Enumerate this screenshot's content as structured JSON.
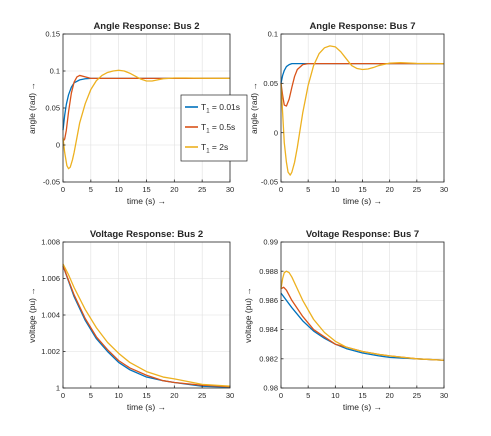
{
  "chart_data": [
    {
      "type": "line",
      "title": "Angle Response: Bus 2",
      "xlabel": "time (s) →",
      "ylabel": "angle (rad)   →",
      "xlim": [
        0,
        30
      ],
      "ylim": [
        -0.05,
        0.15
      ],
      "xticks": [
        0,
        5,
        10,
        15,
        20,
        25,
        30
      ],
      "yticks": [
        -0.05,
        0,
        0.05,
        0.1,
        0.15
      ],
      "ytick_labels": [
        "-0.05",
        "0",
        "0.05",
        "0.1",
        "0.15"
      ],
      "grid": true,
      "legend": {
        "placement": "center-right",
        "entries": [
          {
            "prefix": "T",
            "sub": "1",
            "suffix": " = 0.01s"
          },
          {
            "prefix": "T",
            "sub": "1",
            "suffix": " = 0.5s"
          },
          {
            "prefix": "T",
            "sub": "1",
            "suffix": " = 2s"
          }
        ]
      },
      "series": [
        {
          "color": "#0072BD",
          "x": [
            0,
            0.3,
            0.6,
            1,
            1.5,
            2,
            3,
            4,
            5,
            6,
            8,
            10,
            15,
            20,
            25,
            30
          ],
          "y": [
            0.02,
            0.04,
            0.055,
            0.068,
            0.078,
            0.084,
            0.088,
            0.0895,
            0.09,
            0.09,
            0.09,
            0.09,
            0.09,
            0.09,
            0.09,
            0.09
          ]
        },
        {
          "color": "#D95319",
          "x": [
            0,
            0.3,
            0.6,
            1,
            1.5,
            2,
            2.5,
            3,
            4,
            5,
            6,
            8,
            10,
            15,
            20,
            25,
            30
          ],
          "y": [
            0.005,
            0.008,
            0.02,
            0.045,
            0.07,
            0.085,
            0.092,
            0.094,
            0.092,
            0.09,
            0.09,
            0.09,
            0.09,
            0.09,
            0.09,
            0.09,
            0.09
          ]
        },
        {
          "color": "#EDB120",
          "x": [
            0,
            0.3,
            0.7,
            1,
            1.3,
            1.7,
            2,
            2.5,
            3,
            4,
            5,
            6,
            7,
            8,
            9,
            10,
            11,
            12,
            13,
            14,
            15,
            16,
            17,
            18,
            20,
            22,
            25,
            30
          ],
          "y": [
            0.01,
            -0.01,
            -0.028,
            -0.032,
            -0.03,
            -0.02,
            -0.01,
            0.01,
            0.03,
            0.056,
            0.075,
            0.087,
            0.094,
            0.098,
            0.1,
            0.101,
            0.1,
            0.097,
            0.093,
            0.089,
            0.0865,
            0.0865,
            0.088,
            0.0895,
            0.0905,
            0.0905,
            0.0902,
            0.09
          ]
        }
      ]
    },
    {
      "type": "line",
      "title": "Angle Response: Bus 7",
      "xlabel": "time (s) →",
      "ylabel": "angle (rad)   →",
      "xlim": [
        0,
        30
      ],
      "ylim": [
        -0.05,
        0.1
      ],
      "xticks": [
        0,
        5,
        10,
        15,
        20,
        25,
        30
      ],
      "yticks": [
        -0.05,
        0,
        0.05,
        0.1
      ],
      "ytick_labels": [
        "-0.05",
        "0",
        "0.05",
        "0.1"
      ],
      "grid": true,
      "series": [
        {
          "color": "#0072BD",
          "x": [
            0,
            0.3,
            0.6,
            1,
            1.5,
            2,
            3,
            4,
            5,
            6,
            8,
            10,
            15,
            20,
            25,
            30
          ],
          "y": [
            0.05,
            0.058,
            0.063,
            0.067,
            0.069,
            0.07,
            0.07,
            0.07,
            0.07,
            0.07,
            0.07,
            0.07,
            0.07,
            0.07,
            0.07,
            0.07
          ]
        },
        {
          "color": "#D95319",
          "x": [
            0,
            0.3,
            0.6,
            1,
            1.5,
            2,
            2.5,
            3,
            4,
            5,
            6,
            8,
            10,
            15,
            20,
            25,
            30
          ],
          "y": [
            0.05,
            0.038,
            0.028,
            0.027,
            0.034,
            0.046,
            0.057,
            0.064,
            0.069,
            0.07,
            0.07,
            0.07,
            0.07,
            0.07,
            0.07,
            0.07,
            0.07
          ]
        },
        {
          "color": "#EDB120",
          "x": [
            0,
            0.3,
            0.6,
            1,
            1.3,
            1.7,
            2,
            2.5,
            3,
            4,
            5,
            6,
            7,
            8,
            9,
            10,
            11,
            12,
            13,
            14,
            15,
            16,
            17,
            18,
            20,
            22,
            25,
            30
          ],
          "y": [
            0.05,
            0.02,
            -0.01,
            -0.03,
            -0.04,
            -0.043,
            -0.04,
            -0.03,
            -0.015,
            0.02,
            0.048,
            0.068,
            0.08,
            0.086,
            0.088,
            0.087,
            0.082,
            0.075,
            0.068,
            0.065,
            0.064,
            0.0645,
            0.066,
            0.068,
            0.0705,
            0.071,
            0.0702,
            0.07
          ]
        }
      ]
    },
    {
      "type": "line",
      "title": "Voltage Response: Bus 2",
      "xlabel": "time (s) →",
      "ylabel": "voltage (pu)   →",
      "xlim": [
        0,
        30
      ],
      "ylim": [
        1,
        1.008
      ],
      "xticks": [
        0,
        5,
        10,
        15,
        20,
        25,
        30
      ],
      "yticks": [
        1,
        1.002,
        1.004,
        1.006,
        1.008
      ],
      "ytick_labels": [
        "1",
        "1.002",
        "1.004",
        "1.006",
        "1.008"
      ],
      "grid": true,
      "series": [
        {
          "color": "#0072BD",
          "x": [
            0,
            2,
            4,
            6,
            8,
            10,
            12,
            15,
            18,
            20,
            25,
            30
          ],
          "y": [
            1.0067,
            1.005,
            1.0037,
            1.0027,
            1.002,
            1.0014,
            1.001,
            1.0006,
            1.0004,
            1.0003,
            1.0001,
            1.00005
          ]
        },
        {
          "color": "#D95319",
          "x": [
            0,
            2,
            4,
            6,
            8,
            10,
            12,
            15,
            18,
            20,
            25,
            30
          ],
          "y": [
            1.0067,
            1.0051,
            1.0038,
            1.0028,
            1.0021,
            1.0015,
            1.0011,
            1.0007,
            1.0004,
            1.0003,
            1.00015,
            1.00007
          ]
        },
        {
          "color": "#EDB120",
          "x": [
            0,
            1,
            2,
            4,
            6,
            8,
            10,
            12,
            15,
            18,
            20,
            25,
            30
          ],
          "y": [
            1.0068,
            1.0062,
            1.0055,
            1.0043,
            1.0033,
            1.0025,
            1.0019,
            1.0014,
            1.0009,
            1.0006,
            1.0005,
            1.0002,
            1.0001
          ]
        }
      ]
    },
    {
      "type": "line",
      "title": "Voltage Response: Bus 7",
      "xlabel": "time (s) →",
      "ylabel": "voltage (pu)   →",
      "xlim": [
        0,
        30
      ],
      "ylim": [
        0.98,
        0.99
      ],
      "xticks": [
        0,
        5,
        10,
        15,
        20,
        25,
        30
      ],
      "yticks": [
        0.98,
        0.982,
        0.984,
        0.986,
        0.988,
        0.99
      ],
      "ytick_labels": [
        "0.98",
        "0.982",
        "0.984",
        "0.986",
        "0.988",
        "0.99"
      ],
      "grid": true,
      "series": [
        {
          "color": "#0072BD",
          "x": [
            0,
            2,
            4,
            6,
            8,
            10,
            12,
            15,
            18,
            20,
            25,
            30
          ],
          "y": [
            0.9865,
            0.9855,
            0.9846,
            0.9839,
            0.9834,
            0.983,
            0.9827,
            0.9824,
            0.9822,
            0.9821,
            0.982,
            0.9819
          ]
        },
        {
          "color": "#D95319",
          "x": [
            0,
            0.5,
            1,
            2,
            4,
            6,
            8,
            10,
            12,
            15,
            18,
            20,
            25,
            30
          ],
          "y": [
            0.9868,
            0.9869,
            0.9867,
            0.986,
            0.9849,
            0.984,
            0.9835,
            0.983,
            0.9828,
            0.9825,
            0.9823,
            0.9822,
            0.982,
            0.9819
          ]
        },
        {
          "color": "#EDB120",
          "x": [
            0,
            0.3,
            0.6,
            1,
            1.5,
            2,
            3,
            4,
            6,
            8,
            10,
            12,
            15,
            18,
            20,
            25,
            30
          ],
          "y": [
            0.9868,
            0.9875,
            0.9879,
            0.988,
            0.9879,
            0.9876,
            0.9868,
            0.986,
            0.9847,
            0.9838,
            0.9832,
            0.9828,
            0.9825,
            0.9823,
            0.9822,
            0.982,
            0.9819
          ]
        }
      ]
    }
  ]
}
